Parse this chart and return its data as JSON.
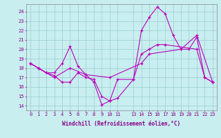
{
  "xlabel": "Windchill (Refroidissement éolien,°C)",
  "background_color": "#c8eef0",
  "line_color": "#bb00bb",
  "grid_color": "#99cccc",
  "xlim": [
    -0.5,
    23.5
  ],
  "ylim": [
    13.5,
    24.8
  ],
  "xticks": [
    0,
    1,
    2,
    3,
    4,
    5,
    6,
    7,
    8,
    9,
    10,
    11,
    13,
    14,
    15,
    16,
    17,
    18,
    19,
    20,
    21,
    22,
    23
  ],
  "yticks": [
    14,
    15,
    16,
    17,
    18,
    19,
    20,
    21,
    22,
    23,
    24
  ],
  "line1_x": [
    0,
    1,
    2,
    3,
    4,
    5,
    6,
    7,
    8,
    9,
    10,
    11,
    13,
    14,
    15,
    16,
    17,
    21,
    22,
    23
  ],
  "line1_y": [
    18.5,
    18.0,
    17.5,
    17.2,
    16.5,
    16.5,
    17.5,
    17.0,
    16.8,
    15.0,
    14.5,
    14.8,
    16.8,
    19.5,
    20.0,
    20.5,
    20.5,
    20.0,
    17.0,
    16.5
  ],
  "line2_x": [
    0,
    1,
    2,
    3,
    4,
    5,
    6,
    7,
    8,
    9,
    10,
    11,
    13,
    14,
    15,
    16,
    17,
    18,
    19,
    20,
    21,
    22,
    23
  ],
  "line2_y": [
    18.5,
    18.0,
    17.5,
    17.5,
    18.5,
    20.3,
    18.2,
    17.3,
    16.5,
    14.1,
    14.5,
    16.8,
    16.8,
    22.0,
    23.4,
    24.5,
    23.8,
    21.5,
    20.0,
    20.0,
    21.3,
    17.0,
    16.5
  ],
  "line3_x": [
    0,
    1,
    3,
    5,
    7,
    10,
    14,
    15,
    19,
    21,
    23
  ],
  "line3_y": [
    18.5,
    18.0,
    17.0,
    18.0,
    17.3,
    17.0,
    18.5,
    19.5,
    20.0,
    21.5,
    16.5
  ]
}
